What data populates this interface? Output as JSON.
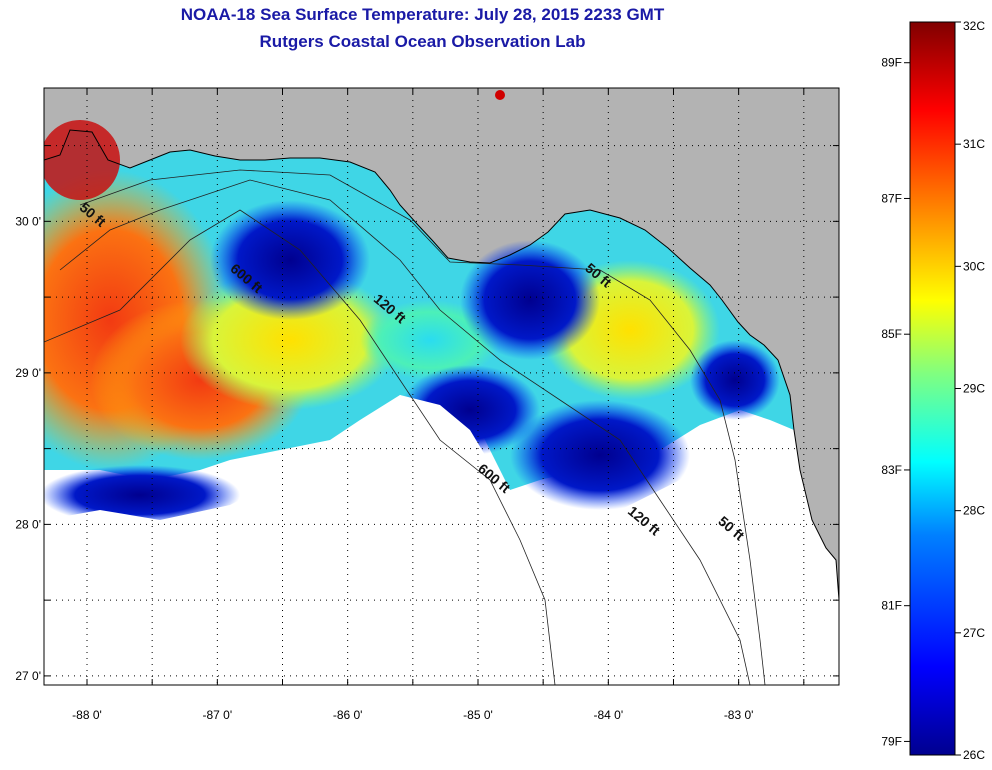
{
  "header": {
    "title": "NOAA-18 Sea Surface Temperature:  July 28, 2015 2233 GMT",
    "subtitle": "Rutgers Coastal Ocean Observation Lab"
  },
  "map": {
    "lon_range": [
      -88.33,
      -82.23
    ],
    "lat_range": [
      26.94,
      30.88
    ],
    "lon_ticks": [
      {
        "value": -88,
        "label": "-88 0'"
      },
      {
        "value": -87,
        "label": "-87 0'"
      },
      {
        "value": -86,
        "label": "-86 0'"
      },
      {
        "value": -85,
        "label": "-85 0'"
      },
      {
        "value": -84,
        "label": "-84 0'"
      },
      {
        "value": -83,
        "label": "-83 0'"
      }
    ],
    "lat_ticks": [
      {
        "value": 27,
        "label": "27 0'"
      },
      {
        "value": 28,
        "label": "28 0'"
      },
      {
        "value": 29,
        "label": "29 0'"
      },
      {
        "value": 30,
        "label": "30 0'"
      }
    ],
    "contour_labels": [
      {
        "text": "50 ft",
        "lon": -87.98,
        "lat": 30.02
      },
      {
        "text": "600 ft",
        "lon": -86.8,
        "lat": 29.6
      },
      {
        "text": "120 ft",
        "lon": -85.7,
        "lat": 29.4
      },
      {
        "text": "50 ft",
        "lon": -84.1,
        "lat": 29.62
      },
      {
        "text": "600 ft",
        "lon": -84.9,
        "lat": 28.28
      },
      {
        "text": "120 ft",
        "lon": -83.75,
        "lat": 28.0
      },
      {
        "text": "50 ft",
        "lon": -83.08,
        "lat": 27.95
      }
    ],
    "colors": {
      "land": "#b3b3b3",
      "no_data": "#ffffff",
      "coast": "#000000"
    }
  },
  "colorbar": {
    "celsius": [
      {
        "value": 32,
        "label": "32C"
      },
      {
        "value": 31,
        "label": "31C"
      },
      {
        "value": 30,
        "label": "30C"
      },
      {
        "value": 29,
        "label": "29C"
      },
      {
        "value": 28,
        "label": "28C"
      },
      {
        "value": 27,
        "label": "27C"
      },
      {
        "value": 26,
        "label": "26C"
      }
    ],
    "fahrenheit": [
      {
        "value": 89,
        "label": "89F"
      },
      {
        "value": 87,
        "label": "87F"
      },
      {
        "value": 85,
        "label": "85F"
      },
      {
        "value": 83,
        "label": "83F"
      },
      {
        "value": 81,
        "label": "81F"
      },
      {
        "value": 79,
        "label": "79F"
      }
    ],
    "range_c": [
      26,
      32
    ],
    "stops": [
      "#00008f",
      "#0000ff",
      "#0080ff",
      "#00ffff",
      "#80ff80",
      "#ffff00",
      "#ff8000",
      "#ff0000",
      "#800000"
    ]
  }
}
